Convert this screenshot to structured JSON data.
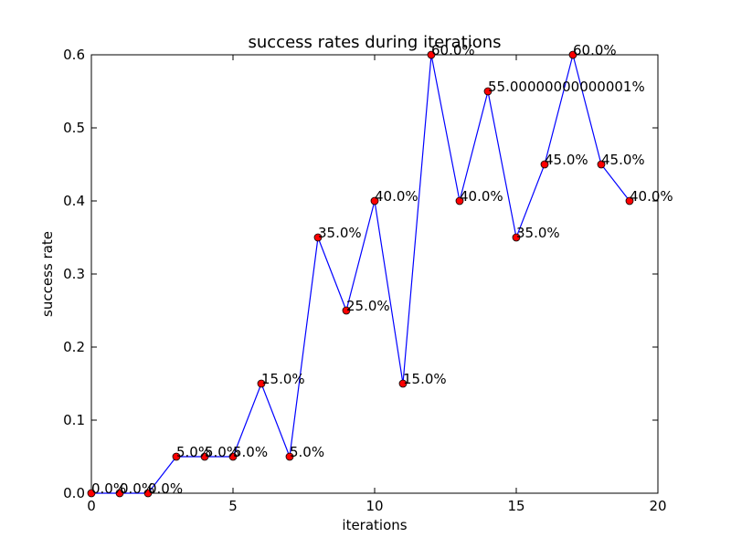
{
  "chart_data": {
    "type": "line",
    "title": "success rates during iterations",
    "xlabel": "iterations",
    "ylabel": "success rate",
    "xlim": [
      0,
      20
    ],
    "ylim": [
      0.0,
      0.6
    ],
    "x_ticks": [
      0,
      5,
      10,
      15,
      20
    ],
    "x_tick_labels": [
      "0",
      "5",
      "10",
      "15",
      "20"
    ],
    "y_ticks": [
      0.0,
      0.1,
      0.2,
      0.3,
      0.4,
      0.5,
      0.6
    ],
    "y_tick_labels": [
      "0.0",
      "0.1",
      "0.2",
      "0.3",
      "0.4",
      "0.5",
      "0.6"
    ],
    "grid": false,
    "line_color": "#0000ff",
    "marker_color": "#ff0000",
    "series": [
      {
        "x": [
          0,
          1,
          2,
          3,
          4,
          5,
          6,
          7,
          8,
          9,
          10,
          11,
          12,
          13,
          14,
          15,
          16,
          17,
          18,
          19
        ],
        "y": [
          0.0,
          0.0,
          0.0,
          0.05,
          0.05,
          0.05,
          0.15,
          0.05,
          0.35,
          0.25,
          0.4,
          0.15,
          0.6,
          0.4,
          0.55,
          0.35,
          0.45,
          0.6,
          0.45,
          0.4
        ],
        "labels": [
          "0.0%",
          "0.0%",
          "0.0%",
          "5.0%",
          "5.0%",
          "5.0%",
          "15.0%",
          "5.0%",
          "35.0%",
          "25.0%",
          "40.0%",
          "15.0%",
          "60.0%",
          "40.0%",
          "55.00000000000001%",
          "35.0%",
          "45.0%",
          "60.0%",
          "45.0%",
          "40.0%"
        ]
      }
    ]
  }
}
